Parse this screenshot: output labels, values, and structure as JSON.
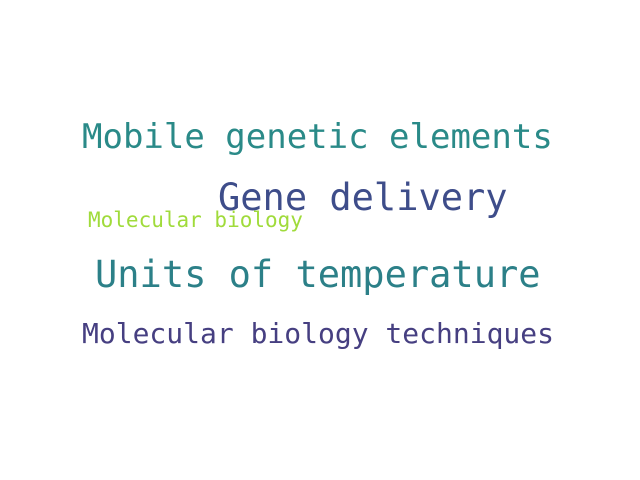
{
  "word_cloud": {
    "words": [
      {
        "text": "Mobile genetic elements",
        "color": "#2a8a88"
      },
      {
        "text": "Gene delivery",
        "color": "#3e4d8a"
      },
      {
        "text": "Molecular biology",
        "color": "#a0db3b"
      },
      {
        "text": "Units of temperature",
        "color": "#2c8088"
      },
      {
        "text": "Molecular biology techniques",
        "color": "#463f81"
      }
    ]
  }
}
